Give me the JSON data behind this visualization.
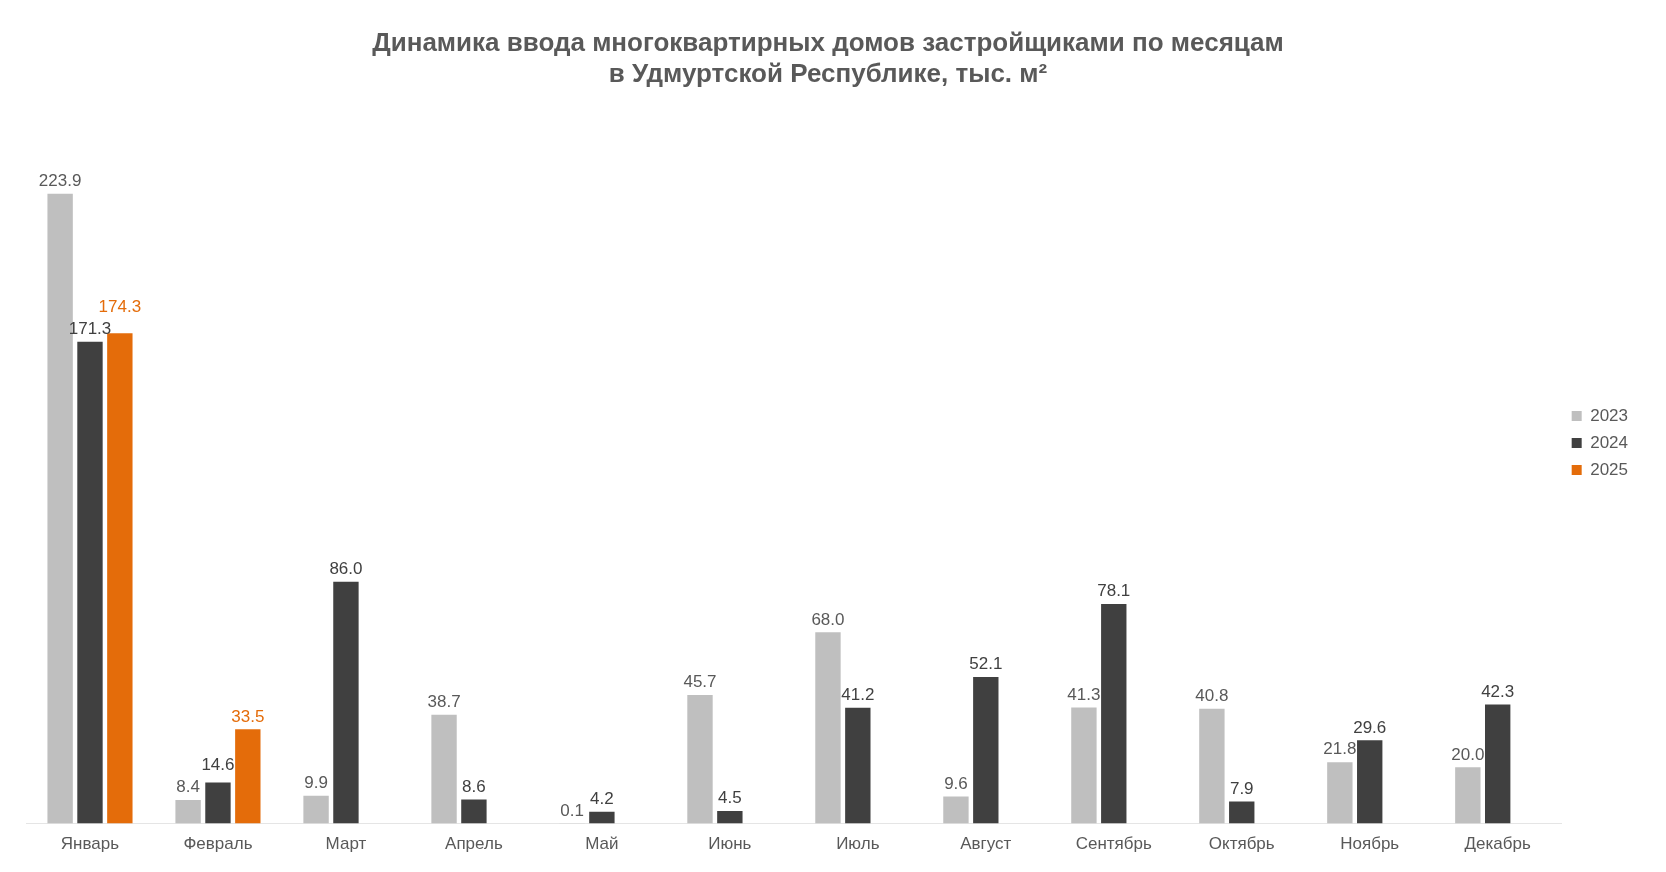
{
  "chart_data": {
    "type": "bar",
    "title": "Динамика ввода многоквартирных домов застройщиками по месяцам\nв Удмуртской Республике, тыс. м²",
    "categories": [
      "Январь",
      "Февраль",
      "Март",
      "Апрель",
      "Май",
      "Июнь",
      "Июль",
      "Август",
      "Сентябрь",
      "Октябрь",
      "Ноябрь",
      "Декабрь"
    ],
    "series": [
      {
        "name": "2023",
        "color": "#bfbfbf",
        "values": [
          223.9,
          8.4,
          9.9,
          38.7,
          0.1,
          45.7,
          68.0,
          9.6,
          41.3,
          40.8,
          21.8,
          20.0
        ],
        "value_labels": [
          "223.9",
          "8.4",
          "9.9",
          "38.7",
          "0.1",
          "45.7",
          "68.0",
          "9.6",
          "41.3",
          "40.8",
          "21.8",
          "20.0"
        ]
      },
      {
        "name": "2024",
        "color": "#404040",
        "values": [
          171.3,
          14.6,
          86.0,
          8.6,
          4.2,
          4.5,
          41.2,
          52.1,
          78.1,
          7.9,
          29.6,
          42.3
        ],
        "value_labels": [
          "171.3",
          "14.6",
          "86.0",
          "8.6",
          "4.2",
          "4.5",
          "41.2",
          "52.1",
          "78.1",
          "7.9",
          "29.6",
          "42.3"
        ]
      },
      {
        "name": "2025",
        "color": "#e46c0a",
        "values": [
          174.3,
          33.5,
          null,
          null,
          null,
          null,
          null,
          null,
          null,
          null,
          null,
          null
        ],
        "value_labels": [
          "174.3",
          "33.5",
          null,
          null,
          null,
          null,
          null,
          null,
          null,
          null,
          null,
          null
        ]
      }
    ],
    "legend": "right",
    "grid": false,
    "relative": false
  }
}
